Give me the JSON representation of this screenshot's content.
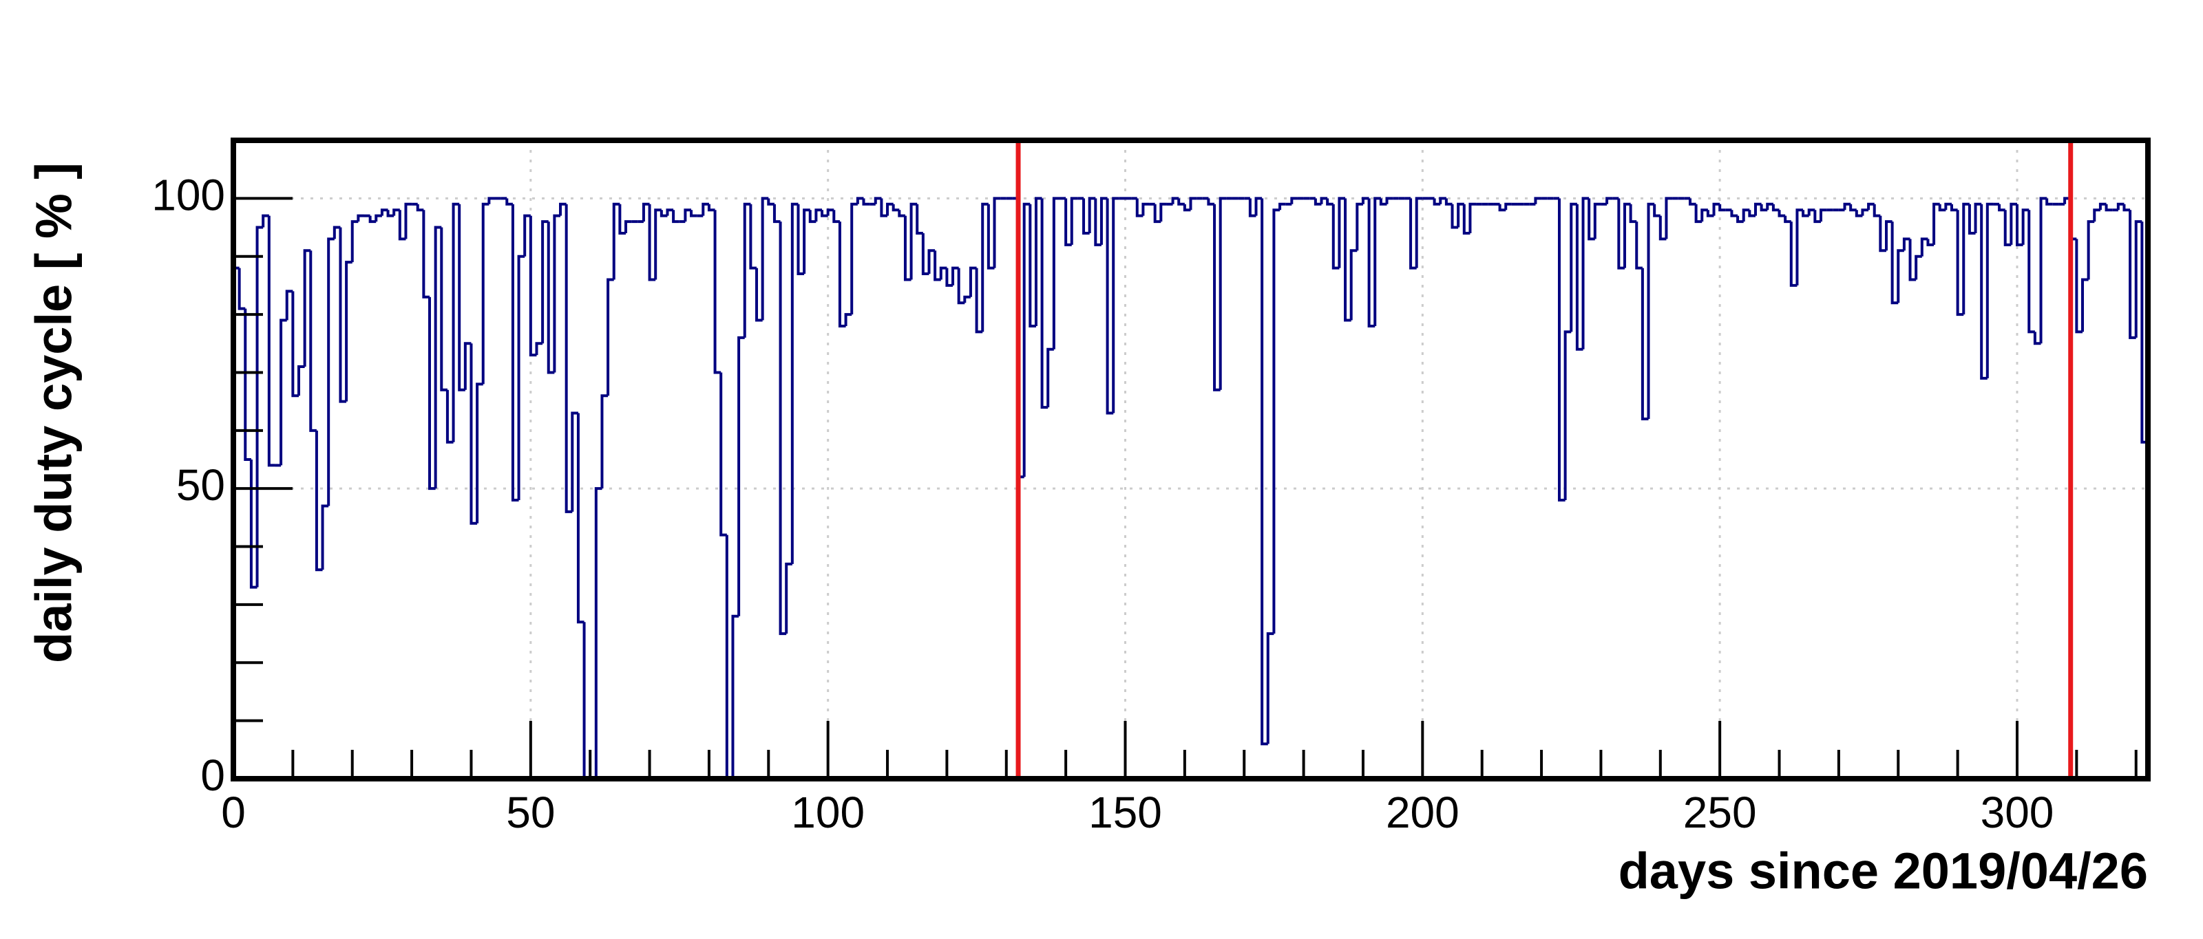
{
  "chart_data": {
    "type": "histogram",
    "xlabel": "days since 2019/04/26",
    "ylabel": "daily duty cycle [ % ]",
    "xlim": [
      0,
      322
    ],
    "ylim": [
      0,
      110
    ],
    "xticks": [
      0,
      50,
      100,
      150,
      200,
      250,
      300
    ],
    "yticks": [
      0,
      50,
      100
    ],
    "xminorticks": [
      10,
      20,
      30,
      40,
      60,
      70,
      80,
      90,
      110,
      120,
      130,
      140,
      160,
      170,
      180,
      190,
      210,
      220,
      230,
      240,
      260,
      270,
      280,
      290,
      310,
      320
    ],
    "yminorticks": [
      10,
      20,
      30,
      40,
      60,
      70,
      80,
      90
    ],
    "grid": true,
    "color": "#000080",
    "markers": [
      132,
      309
    ],
    "marker_color": "#e8191c",
    "bins": [
      0,
      1,
      2,
      3,
      4,
      5,
      6,
      7,
      8,
      9,
      10,
      11,
      12,
      13,
      14,
      15,
      16,
      17,
      18,
      19,
      20,
      21,
      22,
      23,
      24,
      25,
      26,
      27,
      28,
      29,
      30,
      31,
      32,
      33,
      34,
      35,
      36,
      37,
      38,
      39,
      40,
      41,
      42,
      43,
      44,
      45,
      46,
      47,
      48,
      49,
      50,
      51,
      52,
      53,
      54,
      55,
      56,
      57,
      58,
      59,
      60,
      61,
      62,
      63,
      64,
      65,
      66,
      67,
      68,
      69,
      70,
      71,
      72,
      73,
      74,
      75,
      76,
      77,
      78,
      79,
      80,
      81,
      82,
      83,
      84,
      85,
      86,
      87,
      88,
      89,
      90,
      91,
      92,
      93,
      94,
      95,
      96,
      97,
      98,
      99,
      100,
      101,
      102,
      103,
      104,
      105,
      106,
      107,
      108,
      109,
      110,
      111,
      112,
      113,
      114,
      115,
      116,
      117,
      118,
      119,
      120,
      121,
      122,
      123,
      124,
      125,
      126,
      127,
      128,
      129,
      130,
      131,
      132,
      133,
      134,
      135,
      136,
      137,
      138,
      139,
      140,
      141,
      142,
      143,
      144,
      145,
      146,
      147,
      148,
      149,
      150,
      151,
      152,
      153,
      154,
      155,
      156,
      157,
      158,
      159,
      160,
      161,
      162,
      163,
      164,
      165,
      166,
      167,
      168,
      169,
      170,
      171,
      172,
      173,
      174,
      175,
      176,
      177,
      178,
      179,
      180,
      181,
      182,
      183,
      184,
      185,
      186,
      187,
      188,
      189,
      190,
      191,
      192,
      193,
      194,
      195,
      196,
      197,
      198,
      199,
      200,
      201,
      202,
      203,
      204,
      205,
      206,
      207,
      208,
      209,
      210,
      211,
      212,
      213,
      214,
      215,
      216,
      217,
      218,
      219,
      220,
      221,
      222,
      223,
      224,
      225,
      226,
      227,
      228,
      229,
      230,
      231,
      232,
      233,
      234,
      235,
      236,
      237,
      238,
      239,
      240,
      241,
      242,
      243,
      244,
      245,
      246,
      247,
      248,
      249,
      250,
      251,
      252,
      253,
      254,
      255,
      256,
      257,
      258,
      259,
      260,
      261,
      262,
      263,
      264,
      265,
      266,
      267,
      268,
      269,
      270,
      271,
      272,
      273,
      274,
      275,
      276,
      277,
      278,
      279,
      280,
      281,
      282,
      283,
      284,
      285,
      286,
      287,
      288,
      289,
      290,
      291,
      292,
      293,
      294,
      295,
      296,
      297,
      298,
      299,
      300,
      301,
      302,
      303,
      304,
      305,
      306,
      307,
      308,
      309,
      310,
      311,
      312,
      313,
      314,
      315,
      316,
      317,
      318,
      319,
      320,
      321,
      322
    ],
    "values": [
      88,
      81,
      55,
      33,
      95,
      97,
      54,
      54,
      79,
      84,
      66,
      71,
      91,
      60,
      36,
      47,
      93,
      95,
      65,
      89,
      96,
      97,
      97,
      96,
      97,
      98,
      97,
      98,
      93,
      99,
      99,
      98,
      83,
      50,
      95,
      67,
      58,
      99,
      67,
      75,
      44,
      68,
      99,
      100,
      100,
      100,
      99,
      48,
      90,
      97,
      73,
      75,
      96,
      70,
      97,
      99,
      46,
      63,
      27,
      0,
      0,
      50,
      66,
      86,
      99,
      94,
      96,
      96,
      96,
      99,
      86,
      98,
      97,
      98,
      96,
      96,
      98,
      97,
      97,
      99,
      98,
      70,
      42,
      0,
      28,
      76,
      99,
      88,
      79,
      100,
      99,
      96,
      25,
      37,
      99,
      87,
      98,
      96,
      98,
      97,
      98,
      96,
      78,
      80,
      99,
      100,
      99,
      99,
      100,
      97,
      99,
      98,
      97,
      86,
      99,
      94,
      87,
      91,
      86,
      88,
      85,
      88,
      82,
      83,
      88,
      77,
      99,
      88,
      100,
      100,
      100,
      100,
      52,
      99,
      78,
      100,
      64,
      74,
      100,
      100,
      92,
      100,
      100,
      94,
      100,
      92,
      100,
      63,
      100,
      100,
      100,
      100,
      97,
      99,
      99,
      96,
      99,
      99,
      100,
      99,
      98,
      100,
      100,
      100,
      99,
      67,
      100,
      100,
      100,
      100,
      100,
      97,
      100,
      6,
      25,
      98,
      99,
      99,
      100,
      100,
      100,
      100,
      99,
      100,
      99,
      88,
      100,
      79,
      91,
      99,
      100,
      78,
      100,
      99,
      100,
      100,
      100,
      100,
      88,
      100,
      100,
      100,
      99,
      100,
      99,
      95,
      99,
      94,
      99,
      99,
      99,
      99,
      99,
      98,
      99,
      99,
      99,
      99,
      99,
      100,
      100,
      100,
      100,
      48,
      77,
      99,
      74,
      100,
      93,
      99,
      99,
      100,
      100,
      88,
      99,
      96,
      88,
      62,
      99,
      97,
      93,
      100,
      100,
      100,
      100,
      99,
      96,
      98,
      97,
      99,
      98,
      98,
      97,
      96,
      98,
      97,
      99,
      98,
      99,
      98,
      97,
      96,
      85,
      98,
      97,
      98,
      96,
      98,
      98,
      98,
      98,
      99,
      98,
      97,
      98,
      99,
      97,
      91,
      96,
      82,
      91,
      93,
      86,
      90,
      93,
      92,
      99,
      98,
      99,
      98,
      80,
      99,
      94,
      99,
      69,
      99,
      99,
      98,
      92,
      99,
      92,
      98,
      77,
      75,
      100,
      99,
      99,
      99,
      100,
      93,
      77,
      86,
      96,
      98,
      99,
      98,
      98,
      99,
      98,
      76,
      96,
      58
    ]
  }
}
